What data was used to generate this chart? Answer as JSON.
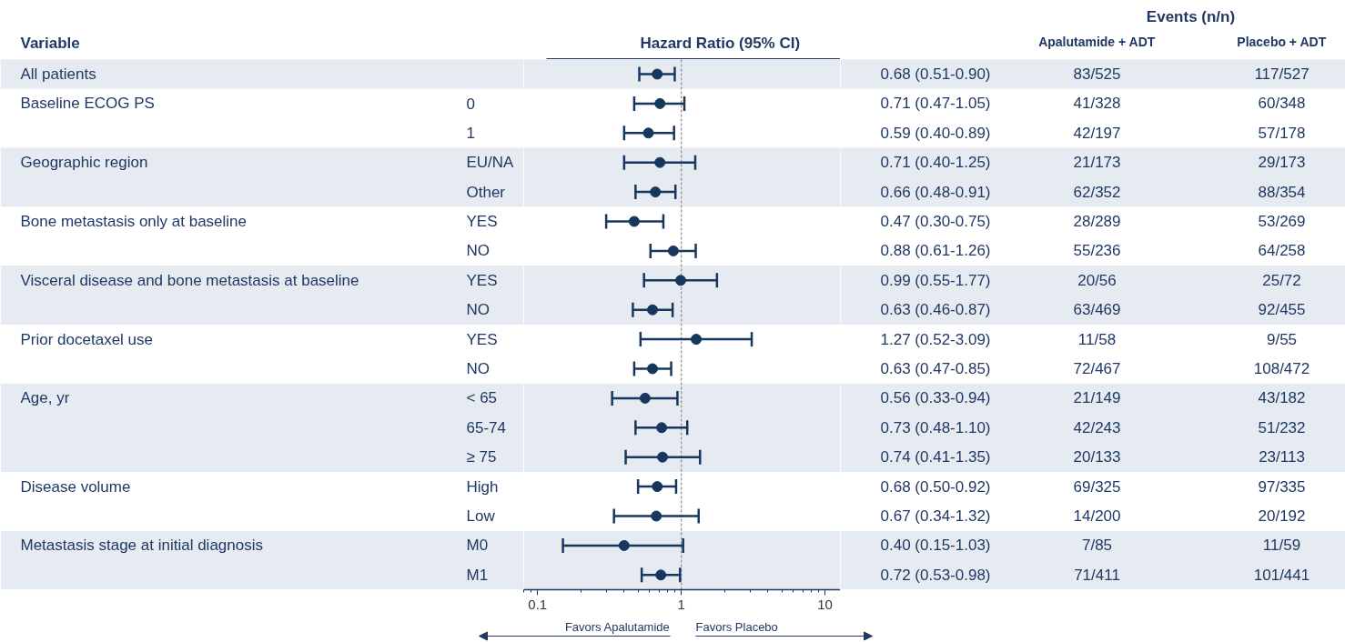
{
  "chart_data": {
    "type": "scatter",
    "orientation": "horizontal",
    "log": "x",
    "grid": false,
    "marker": "circle",
    "title": "Hazard Ratio (95% CI)",
    "categories": [
      null,
      "0",
      "1",
      "EU/NA",
      "Other",
      "YES",
      "NO",
      "YES",
      "NO",
      "YES",
      "NO",
      "< 65",
      "65-74",
      "≥ 75",
      "High",
      "Low",
      "M0",
      "M1"
    ],
    "y2_categories": [
      "All patients",
      "Baseline ECOG PS",
      null,
      "Geographic region",
      null,
      "Bone metastasis only at baseline",
      null,
      "Visceral disease and bone metastasis at baseline",
      null,
      "Prior docetaxel use",
      null,
      "Age, yr",
      null,
      null,
      "Disease volume",
      null,
      "Metastasis stage at initial diagnosis",
      null
    ],
    "values": [
      0.68,
      0.71,
      0.59,
      0.71,
      0.66,
      0.47,
      0.88,
      0.99,
      0.63,
      1.27,
      0.63,
      0.56,
      0.73,
      0.74,
      0.68,
      0.67,
      0.4,
      0.72
    ],
    "errors": [
      [
        0.51,
        0.9
      ],
      [
        0.47,
        1.05
      ],
      [
        0.4,
        0.89
      ],
      [
        0.4,
        1.25
      ],
      [
        0.48,
        0.91
      ],
      [
        0.3,
        0.75
      ],
      [
        0.61,
        1.26
      ],
      [
        0.55,
        1.77
      ],
      [
        0.46,
        0.87
      ],
      [
        0.52,
        3.09
      ],
      [
        0.47,
        0.85
      ],
      [
        0.33,
        0.94
      ],
      [
        0.48,
        1.1
      ],
      [
        0.41,
        1.35
      ],
      [
        0.5,
        0.92
      ],
      [
        0.34,
        1.32
      ],
      [
        0.15,
        1.03
      ],
      [
        0.53,
        0.98
      ]
    ],
    "value_labels": [
      "0.68 (0.51-0.90)",
      "0.71 (0.47-1.05)",
      "0.59 (0.40-0.89)",
      "0.71 (0.40-1.25)",
      "0.66 (0.48-0.91)",
      "0.47 (0.30-0.75)",
      "0.88 (0.61-1.26)",
      "0.99 (0.55-1.77)",
      "0.63 (0.46-0.87)",
      "1.27 (0.52-3.09)",
      "0.63 (0.47-0.85)",
      "0.56 (0.33-0.94)",
      "0.73 (0.48-1.10)",
      "0.74 (0.41-1.35)",
      "0.68 (0.50-0.92)",
      "0.67 (0.34-1.32)",
      "0.40 (0.15-1.03)",
      "0.72 (0.53-0.98)"
    ],
    "color": "#17375e",
    "xlim": [
      0.08,
      12.8
    ],
    "xticks": [
      0.1,
      1,
      10
    ],
    "ref_lines": [
      {
        "axis": "x",
        "value": 1,
        "color": "#8c8c8c",
        "line_style": "dashed"
      }
    ],
    "annotations": [
      "Variable",
      "Events (n/n)",
      "Apalutamide + ADT",
      "Placebo + ADT",
      "Favors Apalutamide",
      "Favors Placebo",
      "83/525",
      "117/527",
      "41/328",
      "60/348",
      "42/197",
      "57/178",
      "21/173",
      "29/173",
      "62/352",
      "88/354",
      "28/289",
      "53/269",
      "55/236",
      "64/258",
      "20/56",
      "25/72",
      "63/469",
      "92/455",
      "11/58",
      "9/55",
      "72/467",
      "108/472",
      "21/149",
      "43/182",
      "42/243",
      "51/232",
      "20/133",
      "23/113",
      "69/325",
      "97/335",
      "14/200",
      "20/192",
      "7/85",
      "11/59",
      "71/411",
      "101/441"
    ]
  }
}
